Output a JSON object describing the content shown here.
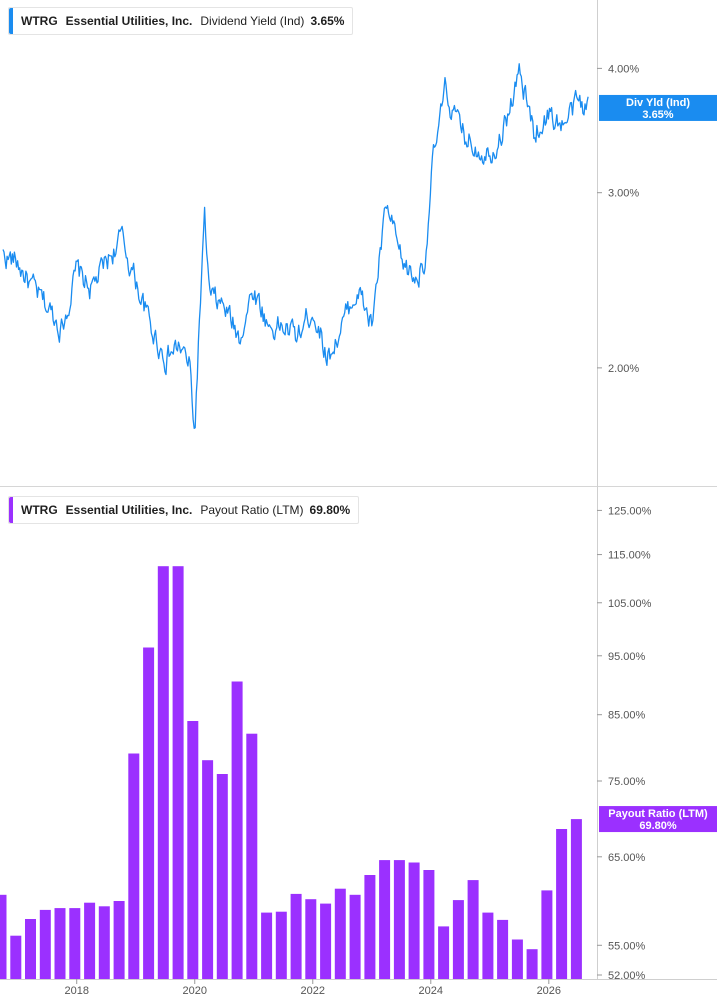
{
  "top_panel": {
    "legend": {
      "ticker": "WTRG",
      "company": "Essential Utilities, Inc.",
      "metric": "Dividend Yield (Ind)",
      "value": "3.65%"
    },
    "badge": {
      "label": "Div Yld (Ind)",
      "value": "3.65%"
    },
    "color": "#1a8cf0"
  },
  "bottom_panel": {
    "legend": {
      "ticker": "WTRG",
      "company": "Essential Utilities, Inc.",
      "metric": "Payout Ratio (LTM)",
      "value": "69.80%"
    },
    "badge": {
      "label": "Payout Ratio (LTM)",
      "value": "69.80%"
    },
    "color": "#9b30ff"
  },
  "chart_data": [
    {
      "type": "line",
      "title": "Dividend Yield (Ind)",
      "series": [
        {
          "name": "Dividend Yield (Ind)"
        }
      ],
      "y_scale": "log",
      "ylim": [
        1.55,
        4.6
      ],
      "y_ticks": [
        {
          "v": 4.0,
          "label": "4.00%"
        },
        {
          "v": 3.0,
          "label": "3.00%"
        },
        {
          "v": 2.0,
          "label": "2.00%"
        }
      ],
      "x_ticks": [
        "2018",
        "2020",
        "2022",
        "2024",
        "2026"
      ],
      "x_range": [
        "2016-10",
        "2026-09"
      ],
      "x": [
        "2016-10",
        "2017-01",
        "2017-04",
        "2017-07",
        "2017-10",
        "2018-01",
        "2018-04",
        "2018-07",
        "2018-10",
        "2019-01",
        "2019-04",
        "2019-07",
        "2019-10",
        "2019-12",
        "2020-01",
        "2020-03",
        "2020-04",
        "2020-07",
        "2020-10",
        "2021-01",
        "2021-04",
        "2021-07",
        "2021-10",
        "2022-01",
        "2022-04",
        "2022-07",
        "2022-10",
        "2023-01",
        "2023-04",
        "2023-07",
        "2023-10",
        "2023-12",
        "2024-01",
        "2024-04",
        "2024-07",
        "2024-10",
        "2025-01",
        "2025-04",
        "2025-07",
        "2025-10",
        "2026-01",
        "2026-04",
        "2026-07",
        "2026-09"
      ],
      "y": [
        2.6,
        2.55,
        2.4,
        2.3,
        2.2,
        2.5,
        2.4,
        2.55,
        2.7,
        2.45,
        2.2,
        2.05,
        2.1,
        2.0,
        1.7,
        2.8,
        2.35,
        2.3,
        2.15,
        2.4,
        2.2,
        2.2,
        2.15,
        2.3,
        2.05,
        2.2,
        2.4,
        2.2,
        2.9,
        2.55,
        2.45,
        2.6,
        3.1,
        3.8,
        3.45,
        3.35,
        3.3,
        3.5,
        3.95,
        3.45,
        3.6,
        3.5,
        3.7,
        3.65
      ]
    },
    {
      "type": "bar",
      "title": "Payout Ratio (LTM)",
      "series": [
        {
          "name": "Payout Ratio (LTM)"
        }
      ],
      "y_scale": "log",
      "ylim": [
        52.0,
        127.0
      ],
      "y_ticks": [
        {
          "v": 125,
          "label": "125.00%"
        },
        {
          "v": 115,
          "label": "115.00%"
        },
        {
          "v": 105,
          "label": "105.00%"
        },
        {
          "v": 95,
          "label": "95.00%"
        },
        {
          "v": 85,
          "label": "85.00%"
        },
        {
          "v": 75,
          "label": "75.00%"
        },
        {
          "v": 65,
          "label": "65.00%"
        },
        {
          "v": 55,
          "label": "55.00%"
        },
        {
          "v": 52,
          "label": "52.00%"
        }
      ],
      "x_ticks": [
        "2018",
        "2020",
        "2022",
        "2024",
        "2026"
      ],
      "x_range": [
        "2016-10",
        "2026-09"
      ],
      "x": [
        "2016-09",
        "2016-12",
        "2017-03",
        "2017-06",
        "2017-09",
        "2017-12",
        "2018-03",
        "2018-06",
        "2018-09",
        "2018-12",
        "2019-03",
        "2019-06",
        "2019-09",
        "2019-12",
        "2020-03",
        "2020-06",
        "2020-09",
        "2020-12",
        "2021-03",
        "2021-06",
        "2021-09",
        "2021-12",
        "2022-03",
        "2022-06",
        "2022-09",
        "2022-12",
        "2023-03",
        "2023-06",
        "2023-09",
        "2023-12",
        "2024-03",
        "2024-06",
        "2024-09",
        "2024-12",
        "2025-03",
        "2025-06",
        "2025-09",
        "2025-12",
        "2026-03",
        "2026-06"
      ],
      "values": [
        60.5,
        56.0,
        57.8,
        58.8,
        59.0,
        59.0,
        59.6,
        59.2,
        59.8,
        79.0,
        96.5,
        112.5,
        112.5,
        84.0,
        78.0,
        76.0,
        90.5,
        82.0,
        58.5,
        58.6,
        60.6,
        60.0,
        59.5,
        61.2,
        60.5,
        62.8,
        64.6,
        64.6,
        64.3,
        63.4,
        57.0,
        59.9,
        62.2,
        58.5,
        57.7,
        55.6,
        54.6,
        61.0,
        68.5,
        69.8
      ]
    }
  ]
}
